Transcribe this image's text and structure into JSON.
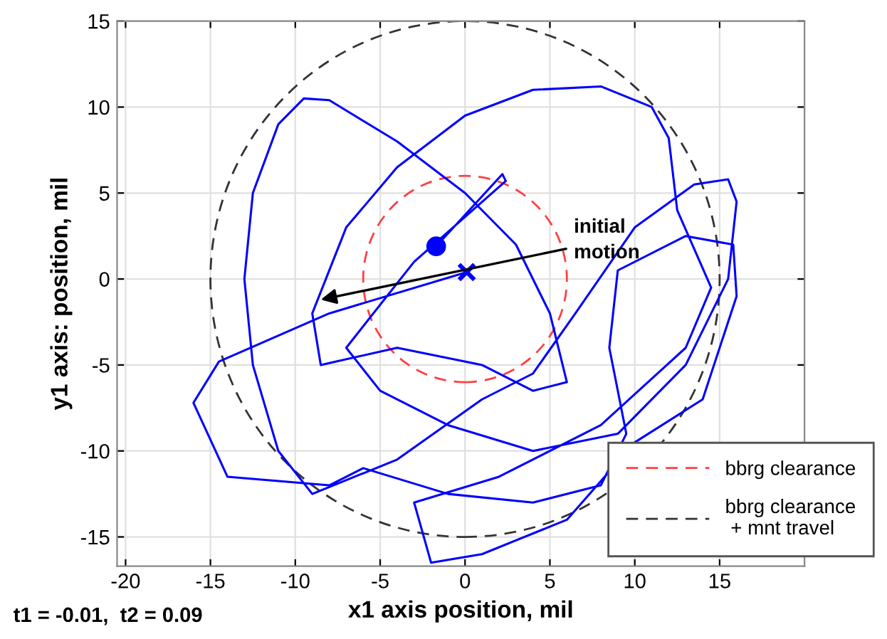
{
  "chart_data": {
    "type": "line",
    "xlabel": "x1 axis position, mil",
    "ylabel": "y1 axis: position, mil",
    "xlim": [
      -20.5,
      20
    ],
    "ylim": [
      -16.7,
      15
    ],
    "xticks": [
      -20,
      -15,
      -10,
      -5,
      0,
      5,
      10,
      15
    ],
    "yticks": [
      -15,
      -10,
      -5,
      0,
      5,
      10,
      15
    ],
    "grid": true,
    "series": [
      {
        "color": "#0000ff",
        "line_style": "solid",
        "marker": "none",
        "x": [
          -1.7,
          2.2,
          2.4,
          -3,
          -7,
          -5,
          -1,
          4,
          9,
          13,
          15.5,
          16,
          15.5,
          13.5,
          10,
          6.5,
          4,
          1,
          -4,
          -9,
          -11,
          -12.5,
          -13,
          -12.5,
          -11,
          -9.5,
          -8,
          -4,
          0,
          3,
          5,
          6,
          4,
          1,
          -4,
          -8.5,
          -9,
          -7,
          -4,
          0,
          4,
          8,
          11,
          12,
          12.5,
          14.5,
          13,
          8,
          2,
          -3,
          -2,
          1,
          6,
          10,
          14,
          16,
          15.8,
          13,
          9,
          8.5,
          9.5,
          8,
          4,
          -1,
          -6,
          -8,
          -14,
          -16,
          -14.5,
          -8,
          0.1
        ],
        "values": [
          1.9,
          6.1,
          5.7,
          1,
          -4,
          -6.5,
          -8.5,
          -10,
          -9,
          -5,
          0,
          4.5,
          5.8,
          5.5,
          3,
          -2,
          -5.5,
          -7,
          -10.5,
          -12.5,
          -10,
          -5,
          0,
          5,
          9,
          10.5,
          10.4,
          8,
          5,
          2,
          -2,
          -6,
          -6.5,
          -5,
          -4,
          -5,
          -2,
          3,
          6.5,
          9.5,
          11,
          11.2,
          10,
          8.2,
          4,
          -0.5,
          -4,
          -8.5,
          -11.5,
          -13,
          -16.5,
          -16,
          -14,
          -9.5,
          -7,
          -1,
          2,
          2.5,
          0.5,
          -4,
          -9,
          -12,
          -13,
          -12.5,
          -11,
          -12,
          -11.5,
          -7.2,
          -4.8,
          -2,
          0.4
        ]
      },
      {
        "type": "scatter",
        "color": "#0000ff",
        "marker": "circle",
        "x": [
          -1.7
        ],
        "values": [
          1.9
        ]
      },
      {
        "type": "scatter",
        "color": "#0000ff",
        "marker": "cross",
        "x": [
          0.1
        ],
        "values": [
          0.4
        ]
      }
    ],
    "annotations": [
      {
        "text": "initial\nmotion",
        "x": -8.5,
        "y": -1.2
      },
      "t1 = -0.01,  t2 = 0.09",
      "bbrg clearance",
      "bbrg clearance\n + mnt travel"
    ]
  }
}
